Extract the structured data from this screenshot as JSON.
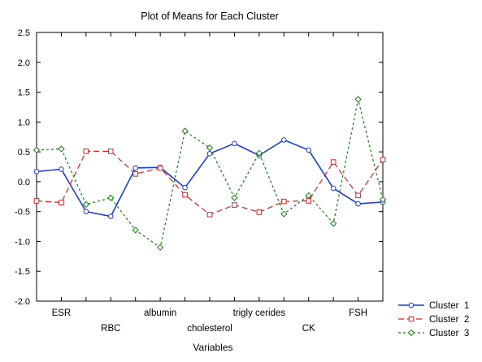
{
  "chart_data": {
    "type": "line",
    "title": "Plot of Means for Each Cluster",
    "xlabel": "Variables",
    "ylabel": "",
    "ylim": [
      -2.0,
      2.5
    ],
    "yticks": [
      "2.5",
      "2.0",
      "1.5",
      "1.0",
      "0.5",
      "0.0",
      "-0.5",
      "-1.0",
      "-1.5",
      "-2.0"
    ],
    "categories": [
      "",
      "ESR",
      "",
      "RBC",
      "",
      "albumin",
      "",
      "cholesterol",
      "",
      "trigly cerides",
      "",
      "CK",
      "",
      "FSH",
      ""
    ],
    "category_labels": [
      {
        "index": 1,
        "text": "ESR",
        "row": 0
      },
      {
        "index": 3,
        "text": "RBC",
        "row": 1
      },
      {
        "index": 5,
        "text": "albumin",
        "row": 0
      },
      {
        "index": 7,
        "text": "cholesterol",
        "row": 1
      },
      {
        "index": 9,
        "text": "trigly cerides",
        "row": 0
      },
      {
        "index": 11,
        "text": "CK",
        "row": 1
      },
      {
        "index": 13,
        "text": "FSH",
        "row": 0
      }
    ],
    "grid": false,
    "legend_position": "bottom-right",
    "series": [
      {
        "name": "Cluster  1",
        "color": "#1f3fd0",
        "dash": "none",
        "marker": "circle",
        "values": [
          0.17,
          0.21,
          -0.5,
          -0.58,
          0.23,
          0.24,
          -0.1,
          0.47,
          0.64,
          0.44,
          0.7,
          0.53,
          -0.11,
          -0.37,
          -0.34
        ]
      },
      {
        "name": "Cluster  2",
        "color": "#e02020",
        "dash": "7,4",
        "marker": "square",
        "values": [
          -0.32,
          -0.35,
          0.51,
          0.51,
          0.13,
          0.23,
          -0.22,
          -0.55,
          -0.39,
          -0.51,
          -0.33,
          -0.32,
          0.33,
          -0.23,
          0.37
        ]
      },
      {
        "name": "Cluster  3",
        "color": "#138013",
        "dash": "3,3",
        "marker": "diamond",
        "values": [
          0.53,
          0.55,
          -0.38,
          -0.27,
          -0.81,
          -1.1,
          0.85,
          0.57,
          -0.27,
          0.48,
          -0.54,
          -0.23,
          -0.7,
          1.38,
          -0.3
        ]
      }
    ]
  }
}
